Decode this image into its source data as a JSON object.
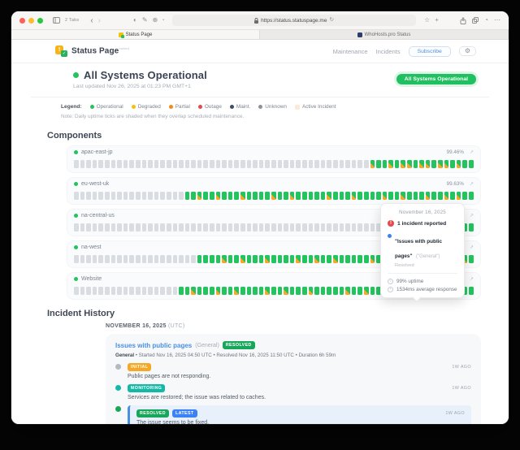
{
  "browser": {
    "tabs_label": "2 Tabs",
    "url": "https://status.statuspage.me",
    "tabs": [
      {
        "label": "Status Page"
      },
      {
        "label": "WhoHosts.pro Status"
      }
    ]
  },
  "header": {
    "brand": "Status Page",
    "brand_superscript": "hosted",
    "nav": [
      "Maintenance",
      "Incidents"
    ],
    "subscribe_label": "Subscribe",
    "gear_icon": "⚙"
  },
  "hero": {
    "title": "All Systems Operational",
    "last_updated": "Last updated Nov 26, 2025 at 01:23 PM GMT+1",
    "badge": "All Systems Operational"
  },
  "legend": {
    "label": "Legend:",
    "items": [
      {
        "label": "Operational",
        "color": "#23c45e",
        "shape": "dot"
      },
      {
        "label": "Degraded",
        "color": "#f4c20d",
        "shape": "dot"
      },
      {
        "label": "Partial",
        "color": "#f08c1a",
        "shape": "dot"
      },
      {
        "label": "Outage",
        "color": "#e5484d",
        "shape": "dot"
      },
      {
        "label": "Maint.",
        "color": "#3f4f63",
        "shape": "dot"
      },
      {
        "label": "Unknown",
        "color": "#8b929c",
        "shape": "dot"
      },
      {
        "label": "Active Incident",
        "color": "#faecd4",
        "shape": "square"
      }
    ],
    "note": "Note: Daily uptime ticks are shaded when they overlap scheduled maintenance."
  },
  "components": {
    "title": "Components",
    "tick_colors": {
      "unknown": "#d9dde2",
      "operational": "#23c45e",
      "maintenance_shade": "#f6a723"
    },
    "items": [
      {
        "name": "apac-east-jp",
        "uptime": "99.46%",
        "ticks": "uuuuuuuuuuuuuuuuuuuuuuuuuuuuuuuuuuuuuuuuuuuuuuuumggmgmmgmmgmmgmgg"
      },
      {
        "name": "eu-west-uk",
        "uptime": "99.63%",
        "ticks": "uuuuuuuuuuuuuuuuuuggmggmgggmggggmggmgggggmgggmggggmggmgggmggmgmgg"
      },
      {
        "name": "na-central-us",
        "uptime": "99.76%",
        "ticks": "uuuuuuuuuuuuuuuuuuuuuuuuuuuuuuuuuuuuuuuuuuuuuuuuuuuuuuuuuuuuuuugg"
      },
      {
        "name": "na-west",
        "uptime": "",
        "ticks": "uuuuuuuuuuuuuuuuuuuuggggmggmgggmggggmggmggmgggggmggmgggmggmggggmg"
      },
      {
        "name": "Website",
        "uptime": "",
        "ticks": "uuuuuuuuuuuuuuuuuggmgggmggmggggmggmgggmgggggmggmgggmggmhmggmggmgg"
      }
    ]
  },
  "tooltip": {
    "date": "November 16, 2025",
    "incident_count": "1 incident reported",
    "incident_title": "\"Issues with public pages\"",
    "incident_group": "(\"General\")",
    "incident_status": "Resolved",
    "uptime": "99% uptime",
    "response": "1534ms average response"
  },
  "incident_history": {
    "title": "Incident History",
    "date_heading": "NOVEMBER 16, 2025",
    "date_suffix": "(UTC)",
    "incident": {
      "title": "Issues with public pages",
      "group": "(General)",
      "status_badge": "RESOLVED",
      "meta_prefix": "General",
      "meta": " • Started Nov 16, 2025 04:50 UTC • Resolved Nov 16, 2025 11:50 UTC • Duration 6h 59m",
      "updates": [
        {
          "badge": "INITIAL",
          "badge_class": "initial",
          "dot_color": "#b5bac2",
          "time": "1W AGO",
          "text": "Public pages are not responding.",
          "highlight": false
        },
        {
          "badge": "MONITORING",
          "badge_class": "monitoring",
          "dot_color": "#14b8a6",
          "time": "1W AGO",
          "text": "Services are restored; the issue was related to caches.",
          "highlight": false
        },
        {
          "badge": "RESOLVED",
          "badge_class": "resolved",
          "badge2": "LATEST",
          "badge2_class": "latest",
          "dot_color": "#17a65a",
          "time": "1W AGO",
          "text": "The issue seems to be fixed.",
          "highlight": true
        }
      ]
    }
  }
}
